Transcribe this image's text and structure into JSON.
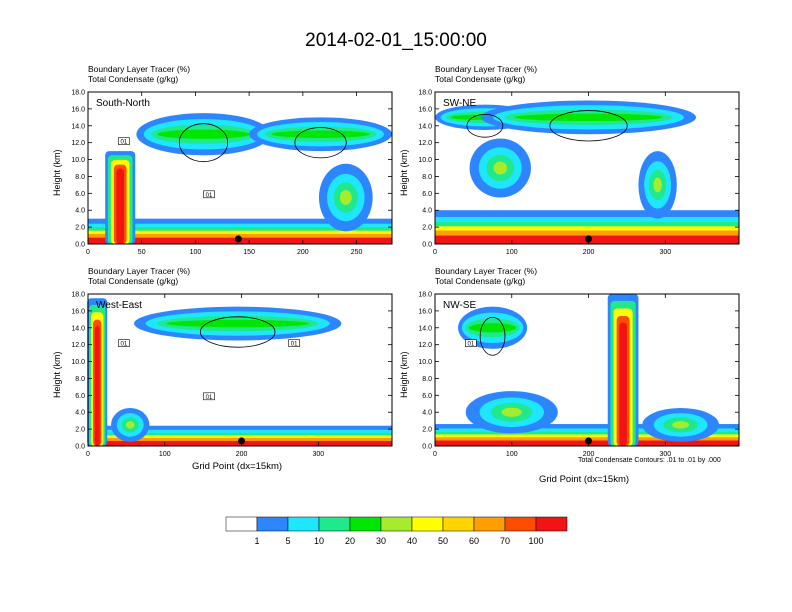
{
  "title": "2014-02-01_15:00:00",
  "legend_line1": "Boundary Layer Tracer   (%)",
  "legend_line2": "Total Condensate   (g/kg)",
  "ylabel": "Height (km)",
  "xlabel": "Grid Point (dx=15km)",
  "footnote": "Total Condensate Contours: .01 to .01 by .000",
  "colors": {
    "levels": [
      "#ffffff",
      "#2e86ff",
      "#1ee6ff",
      "#20e88c",
      "#00e600",
      "#a6ec2c",
      "#ffff00",
      "#ffd400",
      "#ff9e00",
      "#ff4d00",
      "#f01414"
    ],
    "contour": "#000000"
  },
  "colorbar": {
    "labels": [
      "1",
      "5",
      "10",
      "20",
      "30",
      "40",
      "50",
      "60",
      "70",
      "100"
    ]
  },
  "chart_data": [
    {
      "type": "heatmap",
      "name": "South-North",
      "ylim": [
        0,
        18
      ],
      "xlim": [
        0,
        283
      ],
      "yticks": [
        "0.0",
        "2.0",
        "4.0",
        "6.0",
        "8.0",
        "10.0",
        "12.0",
        "14.0",
        "16.0",
        "18.0"
      ],
      "xticks": [
        0,
        50,
        100,
        150,
        200,
        250
      ],
      "marker_x": 140,
      "box_labels": [
        "01",
        "01"
      ],
      "features": [
        {
          "kind": "bl",
          "x0": 0,
          "x1": 283,
          "top": 1.5
        },
        {
          "kind": "tower",
          "x": 30,
          "w": 28,
          "top": 11
        },
        {
          "kind": "anvil",
          "x0": 45,
          "x1": 170,
          "y": 13,
          "th": 5
        },
        {
          "kind": "anvil",
          "x0": 150,
          "x1": 283,
          "y": 13,
          "th": 4
        },
        {
          "kind": "blob",
          "x": 240,
          "y": 5.5,
          "rx": 25,
          "ry": 4
        }
      ]
    },
    {
      "type": "heatmap",
      "name": "SW-NE",
      "ylim": [
        0,
        18
      ],
      "xlim": [
        0,
        396
      ],
      "yticks": [
        "0.0",
        "2.0",
        "4.0",
        "6.0",
        "8.0",
        "10.0",
        "12.0",
        "14.0",
        "16.0",
        "18.0"
      ],
      "xticks": [
        0,
        100,
        200,
        300
      ],
      "marker_x": 200,
      "box_labels": [],
      "features": [
        {
          "kind": "bl",
          "x0": 0,
          "x1": 396,
          "top": 2.0
        },
        {
          "kind": "anvil",
          "x0": 0,
          "x1": 130,
          "y": 15,
          "th": 3
        },
        {
          "kind": "anvil",
          "x0": 60,
          "x1": 340,
          "y": 15,
          "th": 4
        },
        {
          "kind": "blob",
          "x": 85,
          "y": 9,
          "rx": 40,
          "ry": 3.5
        },
        {
          "kind": "blob",
          "x": 290,
          "y": 7,
          "rx": 25,
          "ry": 4
        }
      ]
    },
    {
      "type": "heatmap",
      "name": "West-East",
      "ylim": [
        0,
        18
      ],
      "xlim": [
        0,
        396
      ],
      "yticks": [
        "0.0",
        "2.0",
        "4.0",
        "6.0",
        "8.0",
        "10.0",
        "12.0",
        "14.0",
        "16.0",
        "18.0"
      ],
      "xticks": [
        0,
        100,
        200,
        300
      ],
      "marker_x": 200,
      "box_labels": [
        "01",
        "01",
        "01"
      ],
      "features": [
        {
          "kind": "bl",
          "x0": 0,
          "x1": 396,
          "top": 1.2
        },
        {
          "kind": "tower",
          "x": 12,
          "w": 26,
          "top": 17.5
        },
        {
          "kind": "anvil",
          "x0": 60,
          "x1": 330,
          "y": 14.5,
          "th": 4
        },
        {
          "kind": "blob",
          "x": 55,
          "y": 2.5,
          "rx": 25,
          "ry": 2
        }
      ]
    },
    {
      "type": "heatmap",
      "name": "NW-SE",
      "ylim": [
        0,
        18
      ],
      "xlim": [
        0,
        396
      ],
      "yticks": [
        "0.0",
        "2.0",
        "4.0",
        "6.0",
        "8.0",
        "10.0",
        "12.0",
        "14.0",
        "16.0",
        "18.0"
      ],
      "xticks": [
        0,
        100,
        200,
        300
      ],
      "marker_x": 200,
      "box_labels": [
        "01"
      ],
      "features": [
        {
          "kind": "bl",
          "x0": 0,
          "x1": 396,
          "top": 1.3
        },
        {
          "kind": "anvil",
          "x0": 30,
          "x1": 120,
          "y": 14,
          "th": 5
        },
        {
          "kind": "tower",
          "x": 245,
          "w": 40,
          "top": 18
        },
        {
          "kind": "blob",
          "x": 100,
          "y": 4,
          "rx": 60,
          "ry": 2.5
        },
        {
          "kind": "blob",
          "x": 320,
          "y": 2.5,
          "rx": 50,
          "ry": 2
        }
      ]
    }
  ]
}
